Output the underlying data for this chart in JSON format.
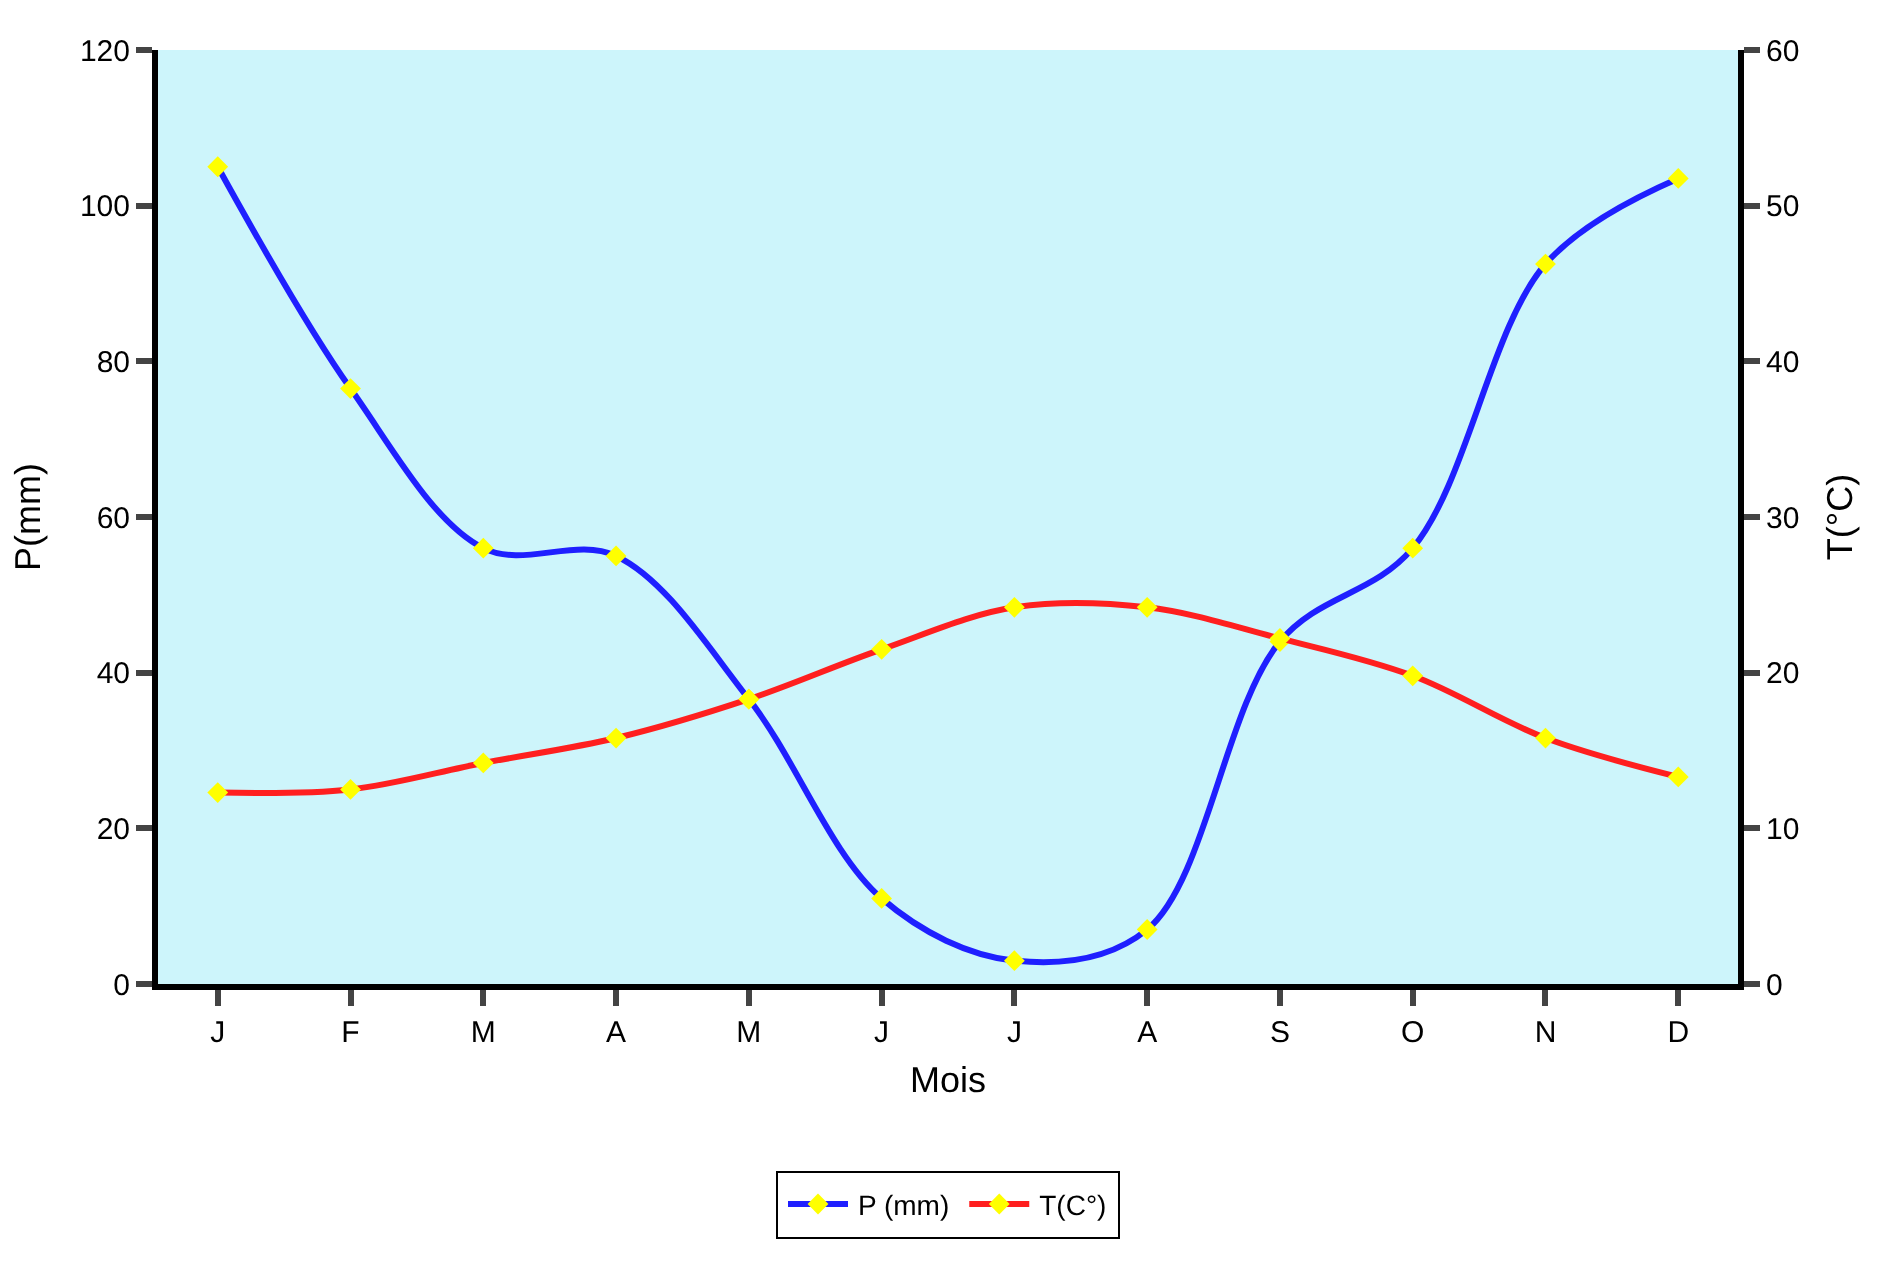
{
  "chart_data": {
    "type": "line",
    "xlabel": "Mois",
    "ylabel": "P(mm)",
    "y2label": "T(°C)",
    "categories": [
      "J",
      "F",
      "M",
      "A",
      "M",
      "J",
      "J",
      "A",
      "S",
      "O",
      "N",
      "D"
    ],
    "series": [
      {
        "name": "P (mm)",
        "color": "#1f1fff",
        "values": [
          105,
          76.5,
          56,
          55,
          36.6,
          11,
          3,
          7,
          44,
          56,
          92.5,
          103.5
        ]
      },
      {
        "name": "T(C°)",
        "color": "#ff1f1f",
        "axis": "y2",
        "values": [
          12.3,
          12.5,
          14.2,
          15.8,
          18.3,
          21.5,
          24.2,
          24.2,
          22.2,
          19.8,
          15.8,
          13.3
        ]
      }
    ],
    "ylim": [
      0,
      120
    ],
    "yticks": [
      0,
      20,
      40,
      60,
      80,
      100,
      120
    ],
    "y2lim": [
      0,
      60
    ],
    "y2ticks": [
      0,
      10,
      20,
      30,
      40,
      50,
      60
    ],
    "marker": "diamond",
    "line_style": "solid",
    "grid": false,
    "legend": "bottom"
  }
}
